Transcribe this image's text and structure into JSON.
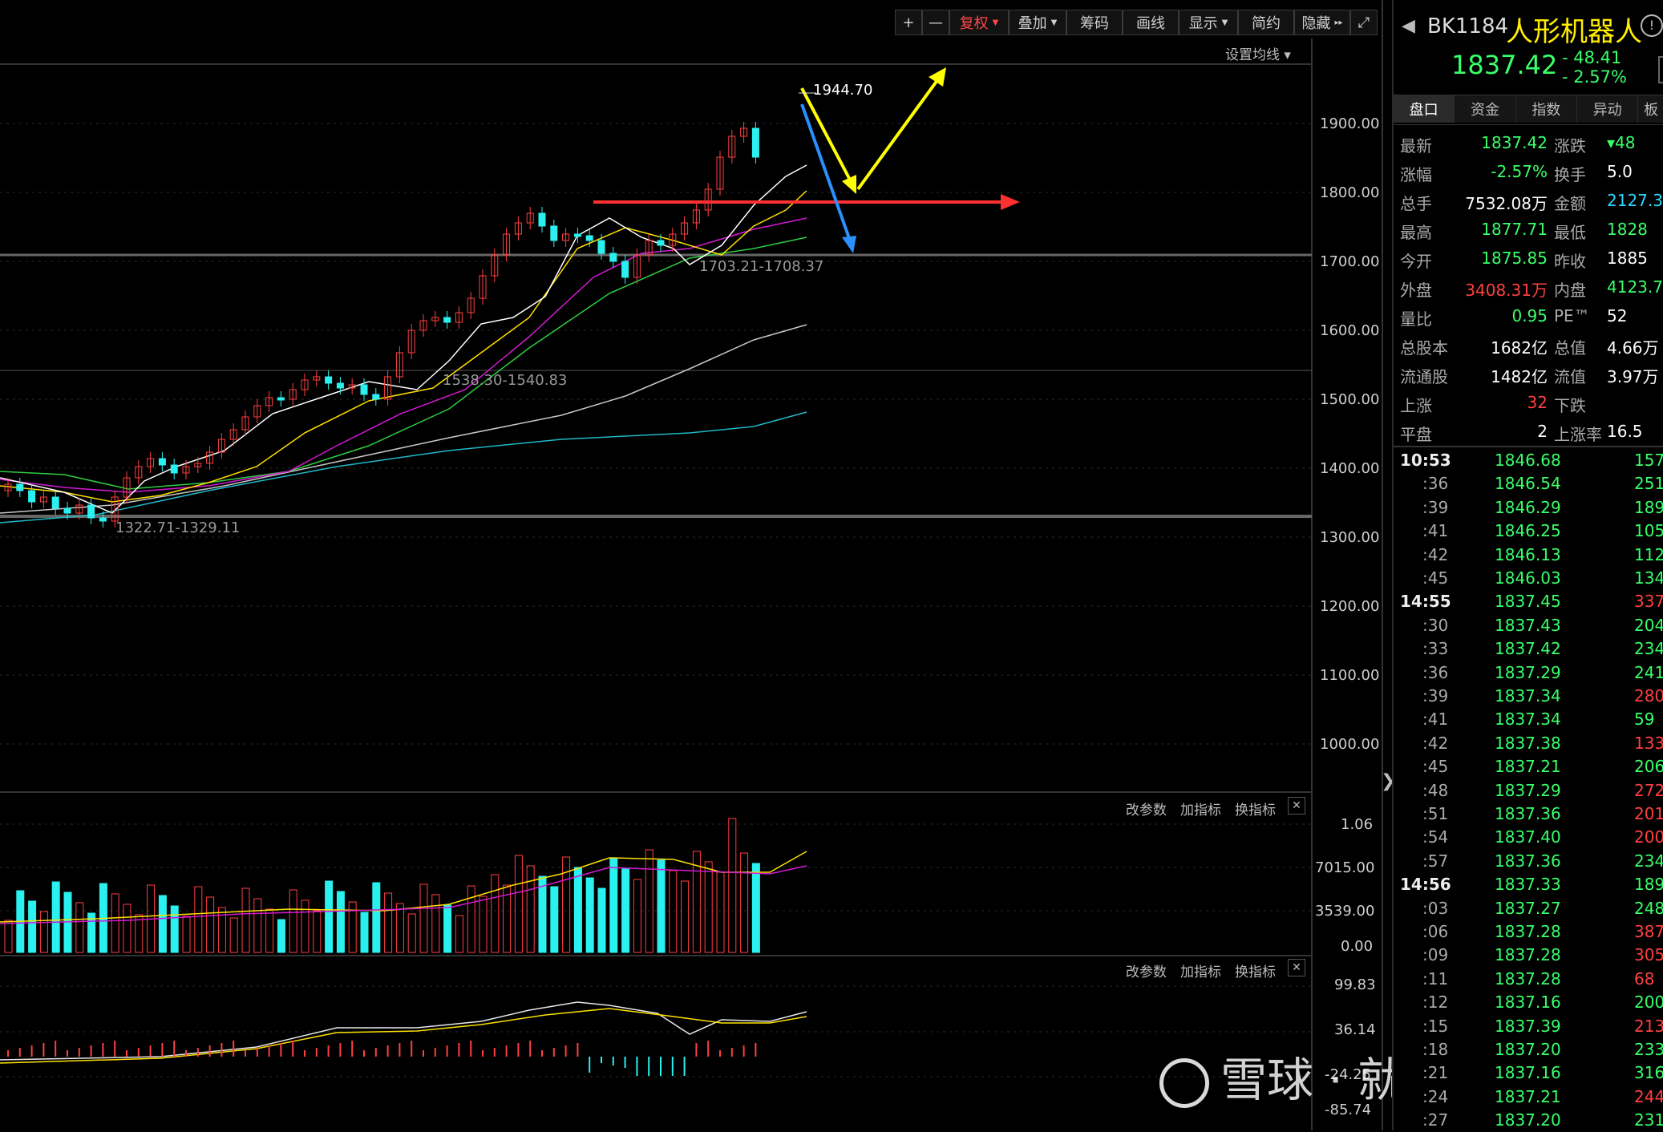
{
  "toolbar": {
    "plus": "+",
    "minus": "—",
    "fuquan": "复权",
    "diejia": "叠加",
    "chouma": "筹码",
    "huaxian": "画线",
    "xianshi": "显示",
    "jianyue": "简约",
    "yincang": "隐藏",
    "expand_icon": "expand-icon"
  },
  "main_chart": {
    "setting_ma": "设置均线",
    "high_label": "1944.70",
    "annotations": [
      "1703.21-1708.37",
      "1538.30-1540.83",
      "1322.71-1329.11"
    ],
    "price_axis": [
      "1900.00",
      "1800.00",
      "1700.00",
      "1600.00",
      "1500.00",
      "1400.00",
      "1300.00",
      "1200.00",
      "1100.00",
      "1000.00"
    ]
  },
  "volume_panel": {
    "buttons": [
      "改参数",
      "加指标",
      "换指标"
    ],
    "axis": [
      "1.06",
      "7015.00",
      "3539.00",
      "0.00"
    ]
  },
  "indicator_panel": {
    "buttons": [
      "改参数",
      "加指标",
      "换指标"
    ],
    "axis": [
      "99.83",
      "36.14",
      "-24.25",
      "-85.74"
    ]
  },
  "watermark": "雪球 · 就是死不了",
  "header": {
    "code": "BK1184",
    "name": "人形机器人",
    "price": "1837.42",
    "change": "- 48.41",
    "change_pct": "- 2.57%"
  },
  "tabs": [
    "盘口",
    "资金",
    "指数",
    "异动",
    "板"
  ],
  "quote": [
    {
      "l1": "最新",
      "v1": "1837.42",
      "c1": "green",
      "l2": "涨跌",
      "v2": "▾48",
      "c2": "green"
    },
    {
      "l1": "涨幅",
      "v1": "-2.57%",
      "c1": "green",
      "l2": "换手",
      "v2": "5.0",
      "c2": "white"
    },
    {
      "l1": "总手",
      "v1": "7532.08万",
      "c1": "white",
      "l2": "金额",
      "v2": "2127.3",
      "c2": "cyan"
    },
    {
      "l1": "最高",
      "v1": "1877.71",
      "c1": "green",
      "l2": "最低",
      "v2": "1828",
      "c2": "green"
    },
    {
      "l1": "今开",
      "v1": "1875.85",
      "c1": "green",
      "l2": "昨收",
      "v2": "1885",
      "c2": "white"
    },
    {
      "l1": "外盘",
      "v1": "3408.31万",
      "c1": "red",
      "l2": "内盘",
      "v2": "4123.7",
      "c2": "green"
    },
    {
      "l1": "量比",
      "v1": "0.95",
      "c1": "green",
      "l2": "PE™",
      "v2": "52",
      "c2": "white"
    },
    {
      "l1": "总股本",
      "v1": "1682亿",
      "c1": "white",
      "l2": "总值",
      "v2": "4.66万",
      "c2": "white"
    },
    {
      "l1": "流通股",
      "v1": "1482亿",
      "c1": "white",
      "l2": "流值",
      "v2": "3.97万",
      "c2": "white"
    },
    {
      "l1": "上涨",
      "v1": "32",
      "c1": "red",
      "l2": "下跌",
      "v2": "",
      "c2": "green"
    },
    {
      "l1": "平盘",
      "v1": "2",
      "c1": "white",
      "l2": "上涨率",
      "v2": "16.5",
      "c2": "white"
    }
  ],
  "ticks": [
    {
      "t": "10:53",
      "p": "1846.68",
      "v": "157",
      "c": "green",
      "bold": true
    },
    {
      "t": ":36",
      "p": "1846.54",
      "v": "251",
      "c": "green"
    },
    {
      "t": ":39",
      "p": "1846.29",
      "v": "189",
      "c": "green"
    },
    {
      "t": ":41",
      "p": "1846.25",
      "v": "105",
      "c": "green"
    },
    {
      "t": ":42",
      "p": "1846.13",
      "v": "112",
      "c": "green"
    },
    {
      "t": ":45",
      "p": "1846.03",
      "v": "134",
      "c": "green"
    },
    {
      "t": "14:55",
      "p": "1837.45",
      "v": "337",
      "c": "red",
      "bold": true
    },
    {
      "t": ":30",
      "p": "1837.43",
      "v": "204",
      "c": "green"
    },
    {
      "t": ":33",
      "p": "1837.42",
      "v": "234",
      "c": "green"
    },
    {
      "t": ":36",
      "p": "1837.29",
      "v": "241",
      "c": "green"
    },
    {
      "t": ":39",
      "p": "1837.34",
      "v": "280",
      "c": "red"
    },
    {
      "t": ":41",
      "p": "1837.34",
      "v": "59",
      "c": "green"
    },
    {
      "t": ":42",
      "p": "1837.38",
      "v": "133",
      "c": "red"
    },
    {
      "t": ":45",
      "p": "1837.21",
      "v": "206",
      "c": "green"
    },
    {
      "t": ":48",
      "p": "1837.29",
      "v": "272",
      "c": "red"
    },
    {
      "t": ":51",
      "p": "1837.36",
      "v": "201",
      "c": "red"
    },
    {
      "t": ":54",
      "p": "1837.40",
      "v": "200",
      "c": "red"
    },
    {
      "t": ":57",
      "p": "1837.36",
      "v": "234",
      "c": "green"
    },
    {
      "t": "14:56",
      "p": "1837.33",
      "v": "189",
      "c": "green",
      "bold": true
    },
    {
      "t": ":03",
      "p": "1837.27",
      "v": "248",
      "c": "green"
    },
    {
      "t": ":06",
      "p": "1837.28",
      "v": "387",
      "c": "red"
    },
    {
      "t": ":09",
      "p": "1837.28",
      "v": "305",
      "c": "red"
    },
    {
      "t": ":11",
      "p": "1837.28",
      "v": "68",
      "c": "red"
    },
    {
      "t": ":12",
      "p": "1837.16",
      "v": "200",
      "c": "green"
    },
    {
      "t": ":15",
      "p": "1837.39",
      "v": "213",
      "c": "red"
    },
    {
      "t": ":18",
      "p": "1837.20",
      "v": "233",
      "c": "green"
    },
    {
      "t": ":21",
      "p": "1837.16",
      "v": "316",
      "c": "green"
    },
    {
      "t": ":24",
      "p": "1837.21",
      "v": "244",
      "c": "red"
    },
    {
      "t": ":27",
      "p": "1837.20",
      "v": "231",
      "c": "green"
    }
  ]
}
